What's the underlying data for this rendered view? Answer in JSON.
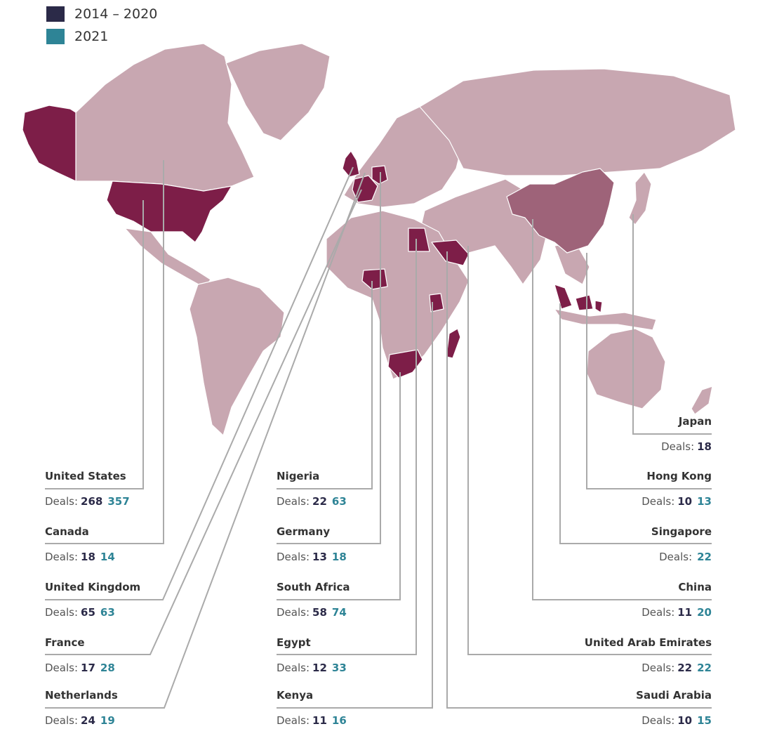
{
  "legend": [
    {
      "label": "2014 – 2020",
      "color": "#2b2a48"
    },
    {
      "label": "2021",
      "color": "#2e8496"
    }
  ],
  "colors": {
    "period1": "#2b2a48",
    "period2": "#2e8496",
    "land": "#c8a7b1",
    "highlight": "#7d1e48",
    "china": "#9e6379",
    "leader": "#aaaaaa"
  },
  "deals_label": "Deals:",
  "countries": [
    {
      "key": "us",
      "name": "United States",
      "v1": "268",
      "v2": "357"
    },
    {
      "key": "ca",
      "name": "Canada",
      "v1": "18",
      "v2": "14"
    },
    {
      "key": "uk",
      "name": "United Kingdom",
      "v1": "65",
      "v2": "63"
    },
    {
      "key": "fr",
      "name": "France",
      "v1": "17",
      "v2": "28"
    },
    {
      "key": "nl",
      "name": "Netherlands",
      "v1": "24",
      "v2": "19"
    },
    {
      "key": "ng",
      "name": "Nigeria",
      "v1": "22",
      "v2": "63"
    },
    {
      "key": "de",
      "name": "Germany",
      "v1": "13",
      "v2": "18"
    },
    {
      "key": "za",
      "name": "South Africa",
      "v1": "58",
      "v2": "74"
    },
    {
      "key": "eg",
      "name": "Egypt",
      "v1": "12",
      "v2": "33"
    },
    {
      "key": "ke",
      "name": "Kenya",
      "v1": "11",
      "v2": "16"
    },
    {
      "key": "jp",
      "name": "Japan",
      "v1": "18",
      "v2": ""
    },
    {
      "key": "hk",
      "name": "Hong Kong",
      "v1": "10",
      "v2": "13"
    },
    {
      "key": "sg",
      "name": "Singapore",
      "v1": "",
      "v2": "22"
    },
    {
      "key": "cn",
      "name": "China",
      "v1": "11",
      "v2": "20"
    },
    {
      "key": "ae",
      "name": "United Arab Emirates",
      "v1": "22",
      "v2": "22"
    },
    {
      "key": "sa",
      "name": "Saudi Arabia",
      "v1": "10",
      "v2": "15"
    }
  ]
}
